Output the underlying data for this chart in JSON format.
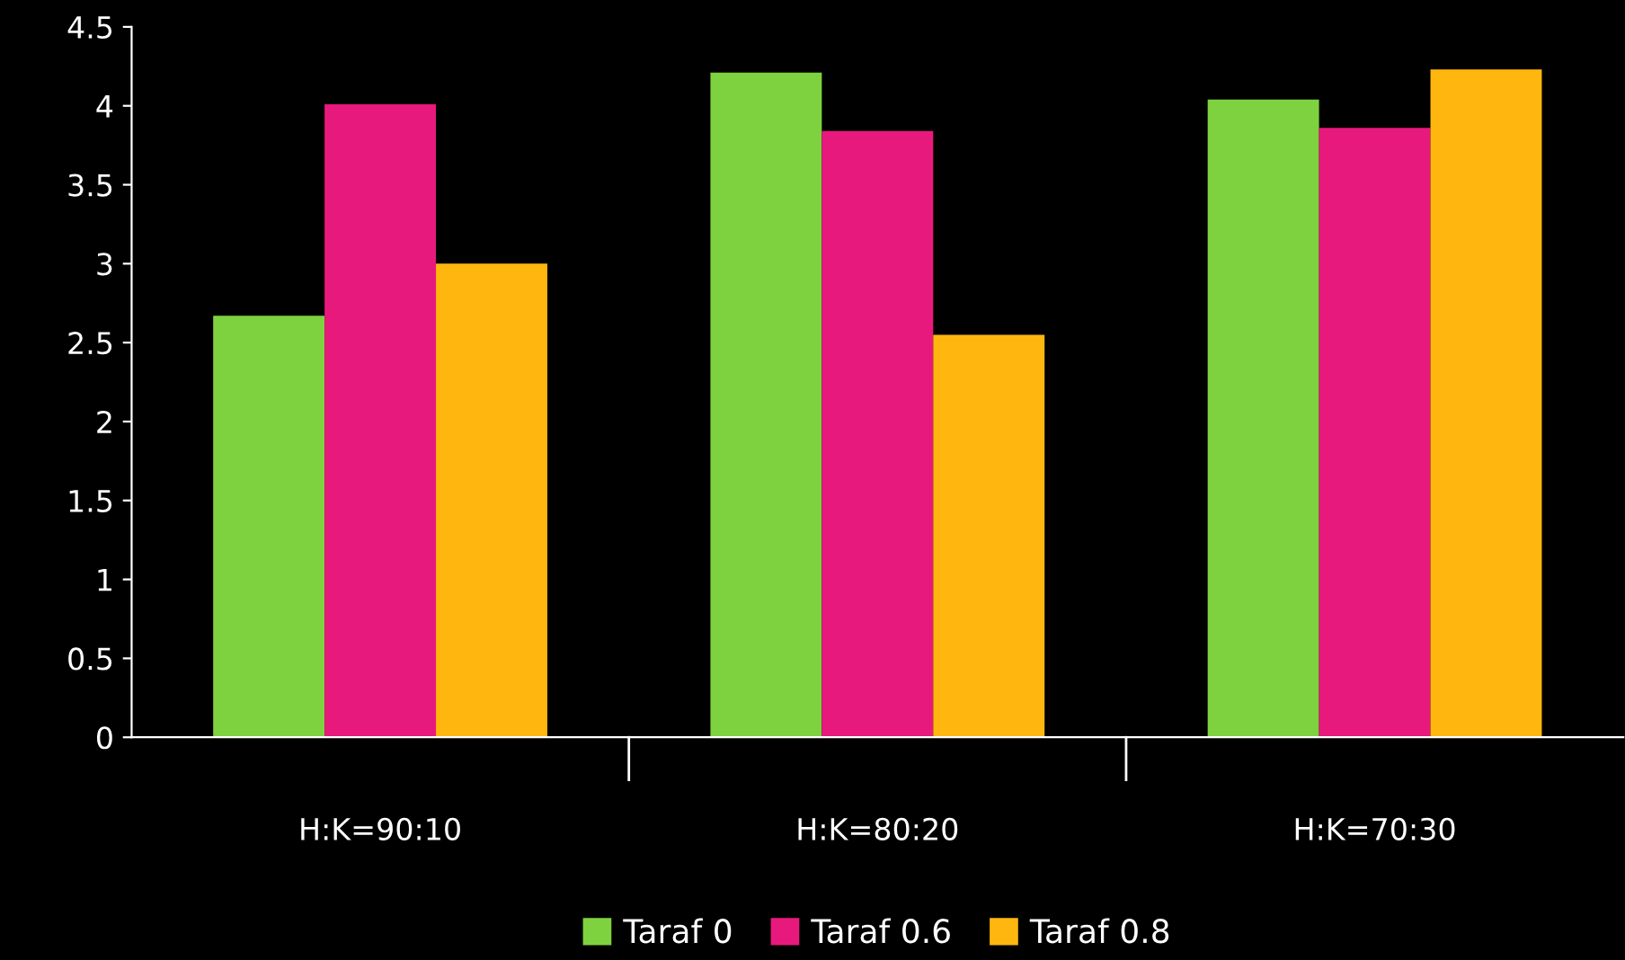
{
  "chart_data": {
    "type": "bar",
    "categories": [
      "H:K=90:10",
      "H:K=80:20",
      "H:K=70:30"
    ],
    "series": [
      {
        "name": "Taraf 0",
        "color": "#7ed23f",
        "values": [
          2.67,
          4.21,
          4.04
        ]
      },
      {
        "name": "Taraf 0.6",
        "color": "#e8197d",
        "values": [
          4.01,
          3.84,
          3.86
        ]
      },
      {
        "name": "Taraf 0.8",
        "color": "#ffb60f",
        "values": [
          3.0,
          2.55,
          4.23
        ]
      }
    ],
    "ylim": [
      0,
      4.5
    ],
    "yticks": [
      0,
      0.5,
      1,
      1.5,
      2,
      2.5,
      3,
      3.5,
      4,
      4.5
    ],
    "grid": false,
    "legend": "bottom"
  }
}
